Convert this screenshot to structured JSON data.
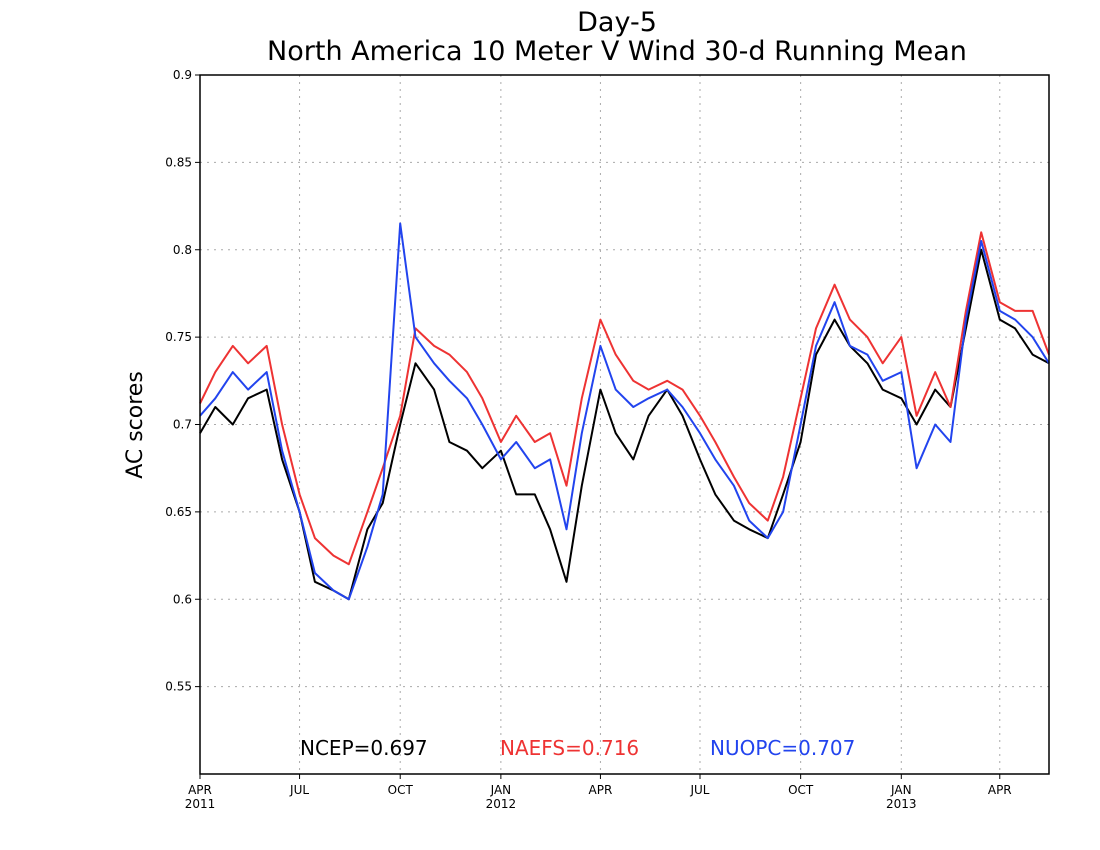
{
  "chart_data": {
    "type": "line",
    "title": "Day-5",
    "subtitle": "North America 10 Meter V Wind 30-d Running Mean",
    "xlabel": "",
    "ylabel": "AC scores",
    "xlim": [
      "2011-04-01",
      "2013-05-16"
    ],
    "ylim": [
      0.5,
      0.9
    ],
    "yticks": [
      0.55,
      0.6,
      0.65,
      0.7,
      0.75,
      0.8,
      0.85,
      0.9
    ],
    "ytick_labels": [
      "0.55",
      "0.6",
      "0.65",
      "0.7",
      "0.75",
      "0.8",
      "0.85",
      "0.9"
    ],
    "xticks": [
      {
        "date": "2011-04-01",
        "label": "APR",
        "year": "2011"
      },
      {
        "date": "2011-07-01",
        "label": "JUL",
        "year": ""
      },
      {
        "date": "2011-10-01",
        "label": "OCT",
        "year": ""
      },
      {
        "date": "2012-01-01",
        "label": "JAN",
        "year": "2012"
      },
      {
        "date": "2012-04-01",
        "label": "APR",
        "year": ""
      },
      {
        "date": "2012-07-01",
        "label": "JUL",
        "year": ""
      },
      {
        "date": "2012-10-01",
        "label": "OCT",
        "year": ""
      },
      {
        "date": "2013-01-01",
        "label": "JAN",
        "year": "2013"
      },
      {
        "date": "2013-04-01",
        "label": "APR",
        "year": ""
      }
    ],
    "grid": true,
    "legend_position": "bottom",
    "x": [
      "2011-04-01",
      "2011-04-15",
      "2011-05-01",
      "2011-05-15",
      "2011-06-01",
      "2011-06-15",
      "2011-07-01",
      "2011-07-15",
      "2011-08-01",
      "2011-08-15",
      "2011-09-01",
      "2011-09-15",
      "2011-10-01",
      "2011-10-15",
      "2011-11-01",
      "2011-11-15",
      "2011-12-01",
      "2011-12-15",
      "2012-01-01",
      "2012-01-15",
      "2012-02-01",
      "2012-02-15",
      "2012-03-01",
      "2012-03-15",
      "2012-04-01",
      "2012-04-15",
      "2012-05-01",
      "2012-05-15",
      "2012-06-01",
      "2012-06-15",
      "2012-07-01",
      "2012-07-15",
      "2012-08-01",
      "2012-08-15",
      "2012-09-01",
      "2012-09-15",
      "2012-10-01",
      "2012-10-15",
      "2012-11-01",
      "2012-11-15",
      "2012-12-01",
      "2012-12-15",
      "2013-01-01",
      "2013-01-15",
      "2013-02-01",
      "2013-02-15",
      "2013-03-01",
      "2013-03-15",
      "2013-04-01",
      "2013-04-15",
      "2013-05-01",
      "2013-05-16"
    ],
    "series": [
      {
        "name": "NCEP",
        "color": "#000000",
        "values": [
          0.695,
          0.71,
          0.7,
          0.715,
          0.72,
          0.68,
          0.65,
          0.61,
          0.605,
          0.6,
          0.64,
          0.655,
          0.7,
          0.735,
          0.72,
          0.69,
          0.685,
          0.675,
          0.685,
          0.66,
          0.66,
          0.64,
          0.61,
          0.665,
          0.72,
          0.695,
          0.68,
          0.705,
          0.72,
          0.705,
          0.68,
          0.66,
          0.645,
          0.64,
          0.635,
          0.66,
          0.69,
          0.74,
          0.76,
          0.745,
          0.735,
          0.72,
          0.715,
          0.7,
          0.72,
          0.71,
          0.755,
          0.8,
          0.76,
          0.755,
          0.74,
          0.735
        ]
      },
      {
        "name": "NAEFS",
        "color": "#ee3333",
        "values": [
          0.712,
          0.73,
          0.745,
          0.735,
          0.745,
          0.7,
          0.66,
          0.635,
          0.625,
          0.62,
          0.65,
          0.675,
          0.705,
          0.755,
          0.745,
          0.74,
          0.73,
          0.715,
          0.69,
          0.705,
          0.69,
          0.695,
          0.665,
          0.715,
          0.76,
          0.74,
          0.725,
          0.72,
          0.725,
          0.72,
          0.705,
          0.69,
          0.67,
          0.655,
          0.645,
          0.67,
          0.715,
          0.755,
          0.78,
          0.76,
          0.75,
          0.735,
          0.75,
          0.705,
          0.73,
          0.71,
          0.765,
          0.81,
          0.77,
          0.765,
          0.765,
          0.74
        ]
      },
      {
        "name": "NUOPC",
        "color": "#2244ee",
        "values": [
          0.705,
          0.715,
          0.73,
          0.72,
          0.73,
          0.685,
          0.65,
          0.615,
          0.605,
          0.6,
          0.63,
          0.66,
          0.815,
          0.75,
          0.735,
          0.725,
          0.715,
          0.7,
          0.68,
          0.69,
          0.675,
          0.68,
          0.64,
          0.695,
          0.745,
          0.72,
          0.71,
          0.715,
          0.72,
          0.71,
          0.695,
          0.68,
          0.665,
          0.645,
          0.635,
          0.65,
          0.7,
          0.745,
          0.77,
          0.745,
          0.74,
          0.725,
          0.73,
          0.675,
          0.7,
          0.69,
          0.76,
          0.805,
          0.765,
          0.76,
          0.75,
          0.735
        ]
      }
    ],
    "legend": [
      {
        "label": "NCEP=0.697",
        "color": "#000000"
      },
      {
        "label": "NAEFS=0.716",
        "color": "#ee3333"
      },
      {
        "label": "NUOPC=0.707",
        "color": "#2244ee"
      }
    ]
  }
}
